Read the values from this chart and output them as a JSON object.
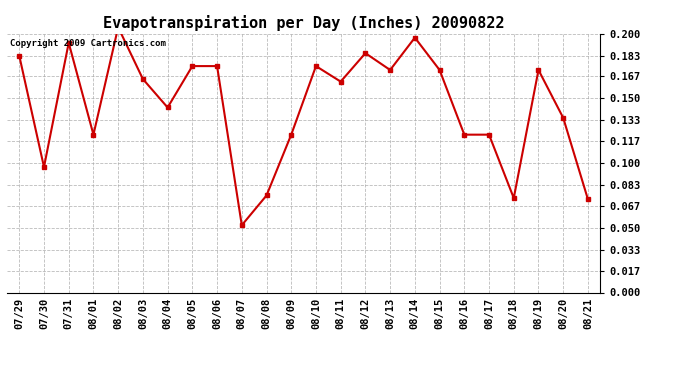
{
  "title": "Evapotranspiration per Day (Inches) 20090822",
  "copyright": "Copyright 2009 Cartronics.com",
  "dates": [
    "07/29",
    "07/30",
    "07/31",
    "08/01",
    "08/02",
    "08/03",
    "08/04",
    "08/05",
    "08/06",
    "08/07",
    "08/08",
    "08/09",
    "08/10",
    "08/11",
    "08/12",
    "08/13",
    "08/14",
    "08/15",
    "08/16",
    "08/17",
    "08/18",
    "08/19",
    "08/20",
    "08/21"
  ],
  "values": [
    0.183,
    0.097,
    0.193,
    0.122,
    0.205,
    0.165,
    0.143,
    0.175,
    0.175,
    0.052,
    0.075,
    0.122,
    0.175,
    0.163,
    0.185,
    0.172,
    0.197,
    0.172,
    0.122,
    0.122,
    0.073,
    0.172,
    0.135,
    0.072
  ],
  "ylim": [
    0.0,
    0.2
  ],
  "yticks": [
    0.0,
    0.017,
    0.033,
    0.05,
    0.067,
    0.083,
    0.1,
    0.117,
    0.133,
    0.15,
    0.167,
    0.183,
    0.2
  ],
  "line_color": "#cc0000",
  "marker": "s",
  "marker_size": 3,
  "background_color": "#ffffff",
  "grid_color": "#aaaaaa",
  "title_fontsize": 11,
  "tick_fontsize": 7.5,
  "copyright_fontsize": 6.5
}
